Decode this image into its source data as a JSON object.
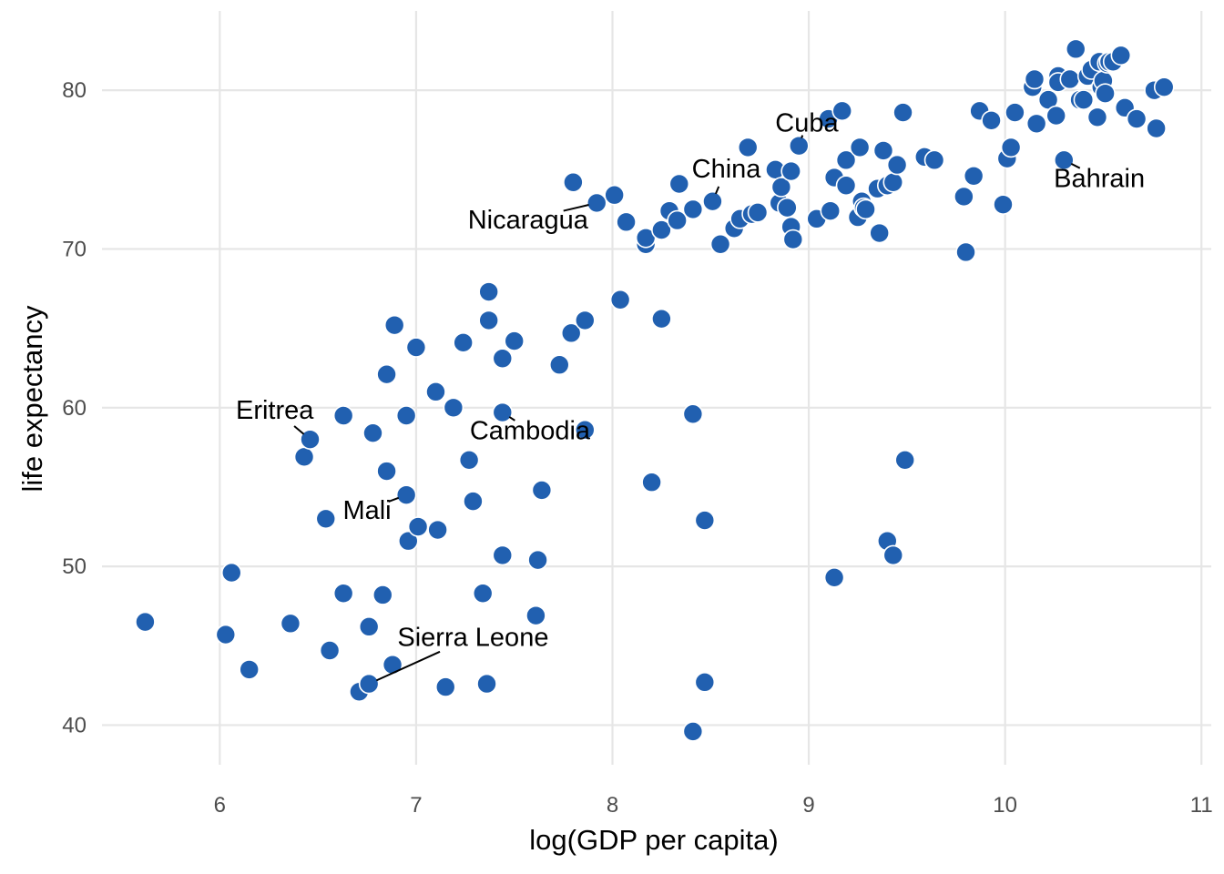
{
  "chart_data": {
    "type": "scatter",
    "xlabel": "log(GDP per capita)",
    "ylabel": "life expectancy",
    "xlim": [
      5.4,
      11.05
    ],
    "ylim": [
      37.5,
      85
    ],
    "x_ticks": [
      6,
      7,
      8,
      9,
      10,
      11
    ],
    "y_ticks": [
      40,
      50,
      60,
      70,
      80
    ],
    "x_tick_labels": [
      "6",
      "7",
      "8",
      "9",
      "10",
      "11"
    ],
    "y_tick_labels": [
      "40",
      "50",
      "60",
      "70",
      "80"
    ],
    "grid": true,
    "point_color": "#2160b0",
    "points": [
      {
        "x": 5.62,
        "y": 46.5
      },
      {
        "x": 6.03,
        "y": 45.7
      },
      {
        "x": 6.06,
        "y": 49.6
      },
      {
        "x": 6.15,
        "y": 43.5
      },
      {
        "x": 6.36,
        "y": 46.4
      },
      {
        "x": 6.43,
        "y": 56.9
      },
      {
        "x": 6.46,
        "y": 58.0
      },
      {
        "x": 6.54,
        "y": 53.0
      },
      {
        "x": 6.56,
        "y": 44.7
      },
      {
        "x": 6.63,
        "y": 59.5
      },
      {
        "x": 6.63,
        "y": 48.3
      },
      {
        "x": 6.71,
        "y": 42.1
      },
      {
        "x": 6.76,
        "y": 42.6
      },
      {
        "x": 6.76,
        "y": 46.2
      },
      {
        "x": 6.78,
        "y": 58.4
      },
      {
        "x": 6.83,
        "y": 48.2
      },
      {
        "x": 6.85,
        "y": 62.1
      },
      {
        "x": 6.85,
        "y": 56.0
      },
      {
        "x": 6.88,
        "y": 43.8
      },
      {
        "x": 6.89,
        "y": 65.2
      },
      {
        "x": 6.95,
        "y": 54.5
      },
      {
        "x": 6.95,
        "y": 59.5
      },
      {
        "x": 6.96,
        "y": 51.6
      },
      {
        "x": 7.0,
        "y": 63.8
      },
      {
        "x": 7.01,
        "y": 52.5
      },
      {
        "x": 7.1,
        "y": 61.0
      },
      {
        "x": 7.11,
        "y": 52.3
      },
      {
        "x": 7.15,
        "y": 42.4
      },
      {
        "x": 7.19,
        "y": 60.0
      },
      {
        "x": 7.24,
        "y": 64.1
      },
      {
        "x": 7.27,
        "y": 56.7
      },
      {
        "x": 7.29,
        "y": 54.1
      },
      {
        "x": 7.34,
        "y": 48.3
      },
      {
        "x": 7.36,
        "y": 42.6
      },
      {
        "x": 7.37,
        "y": 67.3
      },
      {
        "x": 7.37,
        "y": 65.5
      },
      {
        "x": 7.44,
        "y": 63.1
      },
      {
        "x": 7.44,
        "y": 59.7
      },
      {
        "x": 7.44,
        "y": 50.7
      },
      {
        "x": 7.5,
        "y": 64.2
      },
      {
        "x": 7.61,
        "y": 46.9
      },
      {
        "x": 7.62,
        "y": 50.4
      },
      {
        "x": 7.64,
        "y": 54.8
      },
      {
        "x": 7.73,
        "y": 62.7
      },
      {
        "x": 7.79,
        "y": 64.7
      },
      {
        "x": 7.8,
        "y": 74.2
      },
      {
        "x": 7.86,
        "y": 65.5
      },
      {
        "x": 7.86,
        "y": 58.6
      },
      {
        "x": 7.92,
        "y": 72.9
      },
      {
        "x": 8.01,
        "y": 73.4
      },
      {
        "x": 8.04,
        "y": 66.8
      },
      {
        "x": 8.07,
        "y": 71.7
      },
      {
        "x": 8.17,
        "y": 70.3
      },
      {
        "x": 8.17,
        "y": 70.7
      },
      {
        "x": 8.2,
        "y": 55.3
      },
      {
        "x": 8.25,
        "y": 65.6
      },
      {
        "x": 8.25,
        "y": 71.2
      },
      {
        "x": 8.29,
        "y": 72.4
      },
      {
        "x": 8.33,
        "y": 71.8
      },
      {
        "x": 8.34,
        "y": 74.1
      },
      {
        "x": 8.41,
        "y": 72.5
      },
      {
        "x": 8.41,
        "y": 59.6
      },
      {
        "x": 8.41,
        "y": 39.6
      },
      {
        "x": 8.47,
        "y": 42.7
      },
      {
        "x": 8.47,
        "y": 52.9
      },
      {
        "x": 8.51,
        "y": 73.0
      },
      {
        "x": 8.55,
        "y": 70.3
      },
      {
        "x": 8.62,
        "y": 71.3
      },
      {
        "x": 8.65,
        "y": 71.9
      },
      {
        "x": 8.69,
        "y": 76.4
      },
      {
        "x": 8.71,
        "y": 72.2
      },
      {
        "x": 8.74,
        "y": 72.3
      },
      {
        "x": 8.83,
        "y": 75.0
      },
      {
        "x": 8.85,
        "y": 72.9
      },
      {
        "x": 8.86,
        "y": 73.9
      },
      {
        "x": 8.89,
        "y": 72.6
      },
      {
        "x": 8.91,
        "y": 74.9
      },
      {
        "x": 8.91,
        "y": 71.4
      },
      {
        "x": 8.92,
        "y": 70.6
      },
      {
        "x": 8.95,
        "y": 76.5
      },
      {
        "x": 9.04,
        "y": 71.9
      },
      {
        "x": 9.1,
        "y": 78.2
      },
      {
        "x": 9.11,
        "y": 72.4
      },
      {
        "x": 9.13,
        "y": 74.5
      },
      {
        "x": 9.13,
        "y": 49.3
      },
      {
        "x": 9.17,
        "y": 78.7
      },
      {
        "x": 9.19,
        "y": 75.6
      },
      {
        "x": 9.19,
        "y": 74.0
      },
      {
        "x": 9.25,
        "y": 72.0
      },
      {
        "x": 9.26,
        "y": 76.4
      },
      {
        "x": 9.27,
        "y": 73.0
      },
      {
        "x": 9.28,
        "y": 72.6
      },
      {
        "x": 9.29,
        "y": 72.5
      },
      {
        "x": 9.35,
        "y": 73.8
      },
      {
        "x": 9.36,
        "y": 71.0
      },
      {
        "x": 9.38,
        "y": 76.2
      },
      {
        "x": 9.4,
        "y": 74.0
      },
      {
        "x": 9.4,
        "y": 51.6
      },
      {
        "x": 9.43,
        "y": 74.2
      },
      {
        "x": 9.43,
        "y": 50.7
      },
      {
        "x": 9.45,
        "y": 75.3
      },
      {
        "x": 9.48,
        "y": 78.6
      },
      {
        "x": 9.49,
        "y": 56.7
      },
      {
        "x": 9.59,
        "y": 75.8
      },
      {
        "x": 9.64,
        "y": 75.6
      },
      {
        "x": 9.79,
        "y": 73.3
      },
      {
        "x": 9.8,
        "y": 69.8
      },
      {
        "x": 9.84,
        "y": 74.6
      },
      {
        "x": 9.87,
        "y": 78.7
      },
      {
        "x": 9.93,
        "y": 78.1
      },
      {
        "x": 9.99,
        "y": 72.8
      },
      {
        "x": 10.01,
        "y": 75.7
      },
      {
        "x": 10.03,
        "y": 76.4
      },
      {
        "x": 10.05,
        "y": 78.6
      },
      {
        "x": 10.14,
        "y": 80.2
      },
      {
        "x": 10.15,
        "y": 80.7
      },
      {
        "x": 10.16,
        "y": 77.9
      },
      {
        "x": 10.22,
        "y": 79.4
      },
      {
        "x": 10.26,
        "y": 78.4
      },
      {
        "x": 10.27,
        "y": 80.9
      },
      {
        "x": 10.27,
        "y": 80.5
      },
      {
        "x": 10.3,
        "y": 75.6
      },
      {
        "x": 10.33,
        "y": 80.7
      },
      {
        "x": 10.36,
        "y": 82.6
      },
      {
        "x": 10.38,
        "y": 79.4
      },
      {
        "x": 10.4,
        "y": 79.4
      },
      {
        "x": 10.42,
        "y": 80.9
      },
      {
        "x": 10.44,
        "y": 81.3
      },
      {
        "x": 10.47,
        "y": 78.3
      },
      {
        "x": 10.48,
        "y": 81.8
      },
      {
        "x": 10.49,
        "y": 80.2
      },
      {
        "x": 10.5,
        "y": 80.6
      },
      {
        "x": 10.51,
        "y": 79.8
      },
      {
        "x": 10.52,
        "y": 81.7
      },
      {
        "x": 10.53,
        "y": 81.8
      },
      {
        "x": 10.55,
        "y": 81.8
      },
      {
        "x": 10.59,
        "y": 82.2
      },
      {
        "x": 10.61,
        "y": 78.9
      },
      {
        "x": 10.67,
        "y": 78.2
      },
      {
        "x": 10.76,
        "y": 80.0
      },
      {
        "x": 10.77,
        "y": 77.6
      },
      {
        "x": 10.81,
        "y": 80.2
      }
    ],
    "annotations": [
      {
        "label": "Cuba",
        "point": [
          8.95,
          76.5
        ],
        "text_pos": [
          8.99,
          77.4
        ],
        "anchor": "middle"
      },
      {
        "label": "China",
        "point": [
          8.51,
          73.0
        ],
        "text_pos": [
          8.58,
          74.5
        ],
        "anchor": "middle"
      },
      {
        "label": "Nicaragua",
        "point": [
          7.92,
          72.9
        ],
        "text_pos": [
          7.57,
          71.3
        ],
        "anchor": "middle"
      },
      {
        "label": "Bahrain",
        "point": [
          10.3,
          75.6
        ],
        "text_pos": [
          10.48,
          73.9
        ],
        "anchor": "middle"
      },
      {
        "label": "Eritrea",
        "point": [
          6.46,
          58.0
        ],
        "text_pos": [
          6.28,
          59.3
        ],
        "anchor": "middle"
      },
      {
        "label": "Cambodia",
        "point": [
          7.44,
          59.7
        ],
        "text_pos": [
          7.58,
          58.0
        ],
        "anchor": "middle"
      },
      {
        "label": "Mali",
        "point": [
          6.95,
          54.5
        ],
        "text_pos": [
          6.75,
          53.0
        ],
        "anchor": "middle"
      },
      {
        "label": "Sierra Leone",
        "point": [
          6.76,
          42.6
        ],
        "text_pos": [
          7.29,
          45.0
        ],
        "anchor": "middle"
      }
    ]
  }
}
